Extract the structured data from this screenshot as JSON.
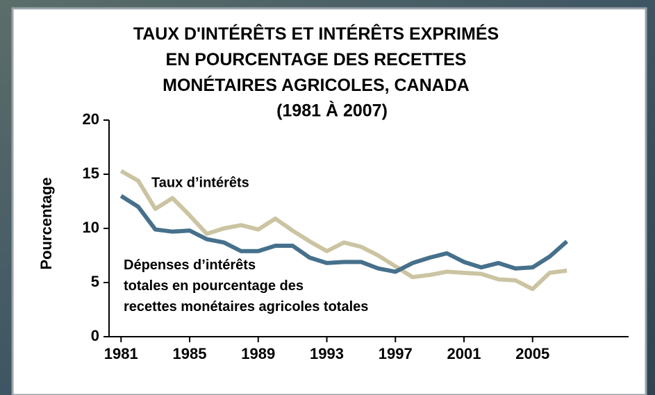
{
  "chart_data": {
    "type": "line",
    "title": "TAUX D'INTÉRÊTS ET INTÉRÊTS EXPRIMÉS EN POURCENTAGE DES RECETTES MONÉTAIRES AGRICOLES, CANADA",
    "subtitle": "(1981 À 2007)",
    "y_label": "Pourcentage",
    "x": [
      1981,
      1982,
      1983,
      1984,
      1985,
      1986,
      1987,
      1988,
      1989,
      1990,
      1991,
      1992,
      1993,
      1994,
      1995,
      1996,
      1997,
      1998,
      1999,
      2000,
      2001,
      2002,
      2003,
      2004,
      2005,
      2006,
      2007
    ],
    "series": [
      {
        "name": "Taux d’intérêts",
        "color": "#cbc4a2",
        "values": [
          15.3,
          14.4,
          11.8,
          12.8,
          11.2,
          9.5,
          10.0,
          10.3,
          9.9,
          10.9,
          9.8,
          8.8,
          7.9,
          8.7,
          8.3,
          7.5,
          6.5,
          5.5,
          5.7,
          6.0,
          5.9,
          5.8,
          5.3,
          5.2,
          4.4,
          5.9,
          6.1
        ]
      },
      {
        "name": "Dépenses d’intérêts totales en pourcentage des recettes monétaires agricoles totales",
        "color": "#46708b",
        "values": [
          13.0,
          12.0,
          9.9,
          9.7,
          9.8,
          9.0,
          8.7,
          7.9,
          7.9,
          8.4,
          8.4,
          7.3,
          6.8,
          6.9,
          6.9,
          6.3,
          6.0,
          6.8,
          7.3,
          7.7,
          6.9,
          6.4,
          6.8,
          6.3,
          6.4,
          7.4,
          8.8
        ]
      }
    ],
    "xlim": [
      1980.3,
      2010.6
    ],
    "xticks": [
      1981,
      1985,
      1989,
      1993,
      1997,
      2001,
      2005
    ],
    "ylim": [
      0,
      20
    ],
    "yticks": [
      0,
      5,
      10,
      15,
      20
    ]
  }
}
